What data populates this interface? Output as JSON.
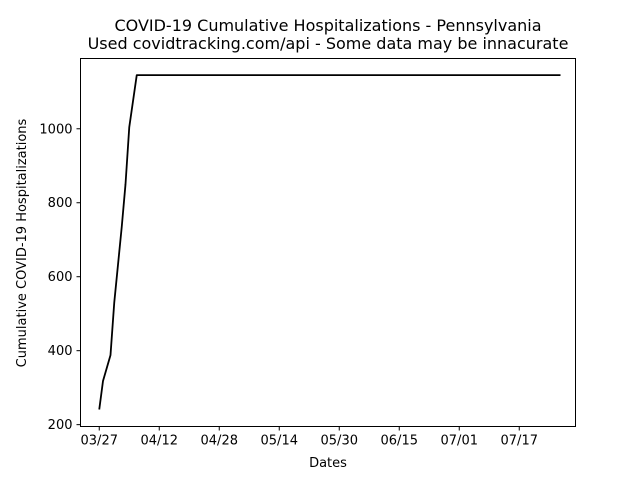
{
  "chart_data": {
    "type": "line",
    "title": "COVID-19 Cumulative Hospitalizations - Pennsylvania",
    "subtitle": "Used covidtracking.com/api - Some data may be innacurate",
    "xlabel": "Dates",
    "ylabel": "Cumulative COVID-19 Hospitalizations",
    "x_ticks": [
      "03/27",
      "04/12",
      "04/28",
      "05/14",
      "05/30",
      "06/15",
      "07/01",
      "07/17"
    ],
    "y_ticks": [
      200,
      400,
      600,
      800,
      1000
    ],
    "xlim": [
      "2020-03-22",
      "2020-08-01"
    ],
    "ylim": [
      195,
      1190
    ],
    "grid": false,
    "line_color": "#000000",
    "series": [
      {
        "x": [
          "2020-03-27",
          "2020-03-28",
          "2020-03-30",
          "2020-03-31",
          "2020-04-02",
          "2020-04-03",
          "2020-04-04",
          "2020-04-06",
          "2020-07-28"
        ],
        "values": [
          241,
          318,
          388,
          530,
          735,
          850,
          1004,
          1145,
          1145
        ]
      }
    ]
  }
}
